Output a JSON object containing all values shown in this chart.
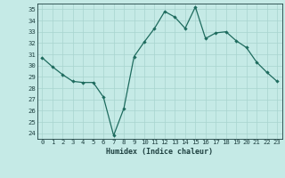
{
  "title": "",
  "xlabel": "Humidex (Indice chaleur)",
  "x": [
    0,
    1,
    2,
    3,
    4,
    5,
    6,
    7,
    8,
    9,
    10,
    11,
    12,
    13,
    14,
    15,
    16,
    17,
    18,
    19,
    20,
    21,
    22,
    23
  ],
  "y": [
    30.7,
    29.9,
    29.2,
    28.6,
    28.5,
    28.5,
    27.2,
    23.8,
    26.2,
    30.8,
    32.1,
    33.3,
    34.8,
    34.3,
    33.3,
    35.2,
    32.4,
    32.9,
    33.0,
    32.2,
    31.6,
    30.3,
    29.4,
    28.6
  ],
  "line_color": "#1e6b5e",
  "bg_color": "#c5eae6",
  "grid_color": "#a8d4cf",
  "text_color": "#1e4040",
  "ylim": [
    23.5,
    35.5
  ],
  "yticks": [
    24,
    25,
    26,
    27,
    28,
    29,
    30,
    31,
    32,
    33,
    34,
    35
  ],
  "xticks": [
    0,
    1,
    2,
    3,
    4,
    5,
    6,
    7,
    8,
    9,
    10,
    11,
    12,
    13,
    14,
    15,
    16,
    17,
    18,
    19,
    20,
    21,
    22,
    23
  ],
  "xlabel_fontsize": 6.0,
  "tick_fontsize": 5.2
}
